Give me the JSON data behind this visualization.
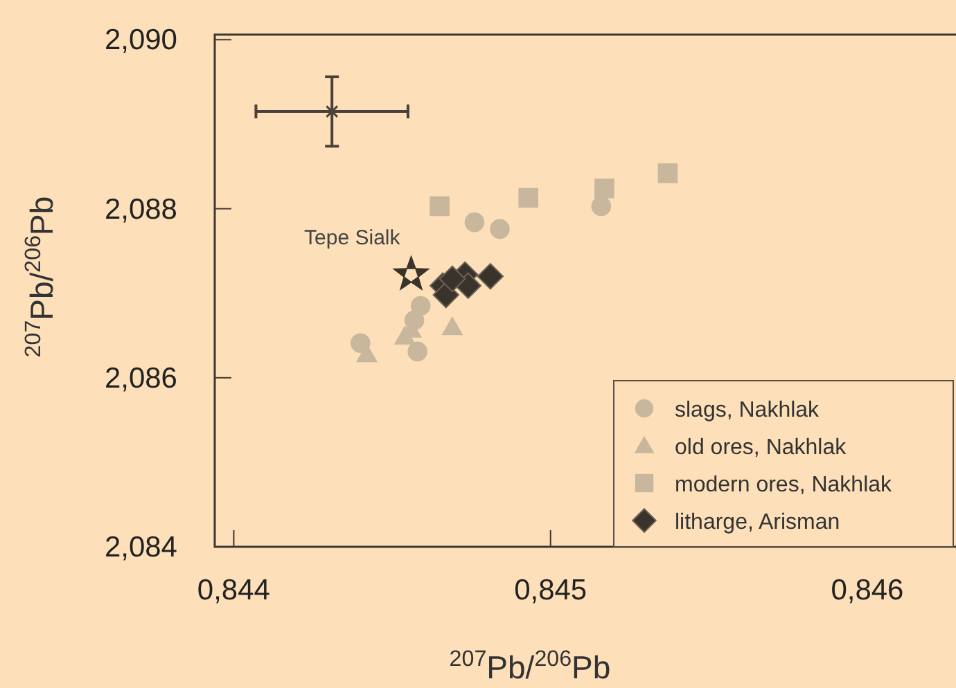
{
  "chart_data": {
    "type": "scatter",
    "xlabel": "$^{207}$Pb/$^{206}$Pb",
    "ylabel": "$^{207}$Pb/$^{206}$Pb",
    "xlim": [
      0.84394,
      0.84628
    ],
    "ylim": [
      2.084,
      2.09006
    ],
    "xticks": [
      {
        "value": 0.844,
        "label": "0,844"
      },
      {
        "value": 0.845,
        "label": "0,845"
      },
      {
        "value": 0.846,
        "label": "0,846"
      }
    ],
    "yticks": [
      {
        "value": 2.084,
        "label": "2,084"
      },
      {
        "value": 2.086,
        "label": "2,086"
      },
      {
        "value": 2.088,
        "label": "2,088"
      },
      {
        "value": 2.09,
        "label": "2,090"
      }
    ],
    "grid": false,
    "legend": "bottom right",
    "annotations": [
      {
        "text": "Tepe Sialk",
        "x": 0.84456,
        "y": 2.08722
      }
    ],
    "series": [
      {
        "name": "slags, Nakhlak",
        "color": "#c9b79d",
        "marker": "circle",
        "x": [
          0.84476,
          0.84484,
          0.84516,
          0.84459,
          0.84457,
          0.8444,
          0.84458
        ],
        "values": [
          2.08784,
          2.08776,
          2.08803,
          2.08685,
          2.08668,
          2.08641,
          2.08631
        ]
      },
      {
        "name": "old ores, Nakhlak",
        "color": "#c9b79d",
        "marker": "triangle",
        "x": [
          0.84454,
          0.84469,
          0.84442,
          0.84456
        ],
        "values": [
          2.08649,
          2.0866,
          2.08628,
          2.08657
        ]
      },
      {
        "name": "modern ores, Nakhlak",
        "color": "#c9b79d",
        "marker": "square",
        "x": [
          0.84465,
          0.84493,
          0.84517,
          0.84537
        ],
        "values": [
          2.08803,
          2.08813,
          2.08824,
          2.08842
        ]
      },
      {
        "name": "litharge, Arisman",
        "color": "#3a332c",
        "marker": "diamond",
        "x": [
          0.84466,
          0.84467,
          0.84473,
          0.84474,
          0.84481,
          0.84469
        ],
        "values": [
          2.08709,
          2.08698,
          2.08722,
          2.08709,
          2.0872,
          2.08717
        ]
      },
      {
        "color": "#3a332c",
        "marker": "star",
        "x": [
          0.84456
        ],
        "values": [
          2.08722
        ]
      },
      {
        "color": "#4a4238",
        "marker": "cross",
        "x": [
          0.84431
        ],
        "values": [
          2.08915
        ],
        "errors": [
          0.00041
        ],
        "xerrors": [
          0.00024
        ]
      }
    ]
  }
}
